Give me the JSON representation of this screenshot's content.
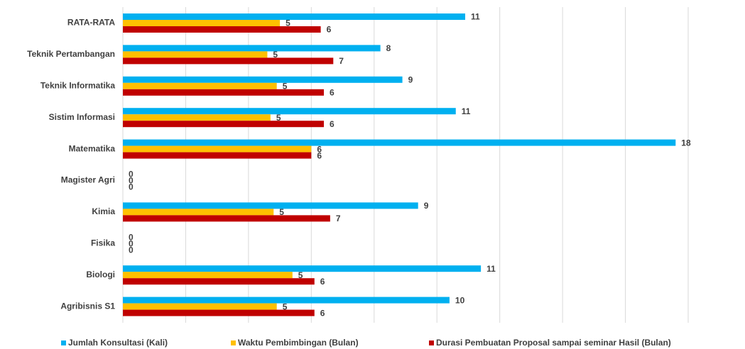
{
  "chart_data": {
    "type": "hbar",
    "categories": [
      "RATA-RATA",
      "Teknik Pertambangan",
      "Teknik Informatika",
      "Sistim Informasi",
      "Matematika",
      "Magister Agri",
      "Kimia",
      "Fisika",
      "Biologi",
      "Agribisnis S1"
    ],
    "series": [
      {
        "name": "Jumlah Konsultasi (Kali)",
        "color": "#00b0f0",
        "values": [
          10.9,
          8.2,
          8.9,
          10.6,
          17.6,
          0,
          9.4,
          0,
          11.4,
          10.4
        ],
        "value_labels": [
          "11",
          "8",
          "9",
          "11",
          "18",
          "0",
          "9",
          "0",
          "11",
          "10"
        ]
      },
      {
        "name": "Waktu Pembimbingan (Bulan)",
        "color": "#ffc000",
        "values": [
          5.0,
          4.6,
          4.9,
          4.7,
          6.0,
          0,
          4.8,
          0,
          5.4,
          4.9
        ],
        "value_labels": [
          "5",
          "5",
          "5",
          "5",
          "6",
          "0",
          "5",
          "0",
          "5",
          "5"
        ]
      },
      {
        "name": "Durasi Pembuatan Proposal sampai seminar Hasil (Bulan)",
        "color": "#c00000",
        "values": [
          6.3,
          6.7,
          6.4,
          6.4,
          6.0,
          0,
          6.6,
          0,
          6.1,
          6.1
        ],
        "value_labels": [
          "6",
          "7",
          "6",
          "6",
          "6",
          "0",
          "7",
          "0",
          "6",
          "6"
        ]
      }
    ],
    "xlim": [
      0,
      18
    ],
    "xticks": [
      0,
      2,
      4,
      6,
      8,
      10,
      12,
      14,
      16,
      18
    ],
    "grid": true,
    "legend": "bottom"
  }
}
